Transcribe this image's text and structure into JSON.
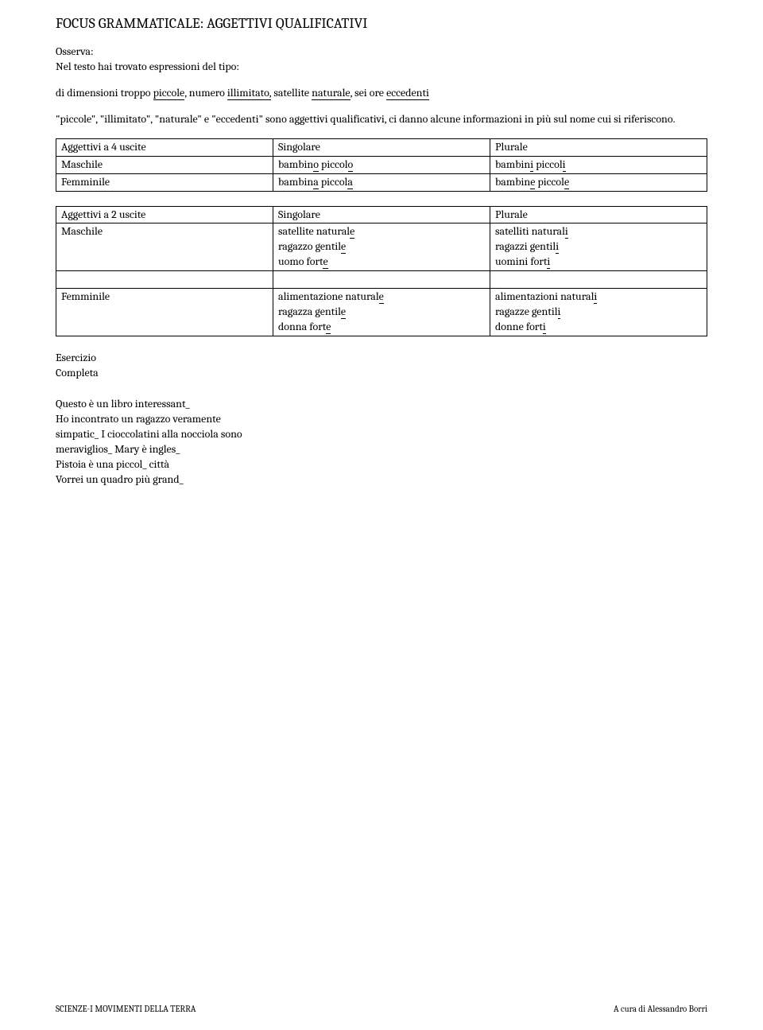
{
  "title": "FOCUS GRAMMATICALE: AGGETTIVI QUALIFICATIVI",
  "osserva_label": "Osserva:",
  "osserva_text": "Nel testo hai trovato espressioni del tipo:",
  "example_prefix": "di dimensioni troppo ",
  "ex_piccole": "piccole",
  "ex_sep1": ", numero ",
  "ex_illimitato": "illimitato,",
  "ex_sep2": " satellite ",
  "ex_naturale": "naturale",
  "ex_sep3": ", sei ore ",
  "ex_eccedenti": "eccedenti",
  "explain": "\"piccole\", \"illimitato\", \"naturale\" e \"eccedenti\" sono aggettivi qualificativi, ci danno alcune informazioni in più sul nome cui si riferiscono.",
  "t1": {
    "h1": "Aggettivi a 4 uscite",
    "h2": "Singolare",
    "h3": "Plurale",
    "r1c1": "Maschile",
    "r1c2_a": "bambin",
    "r1c2_b": "o",
    "r1c2_c": " piccol",
    "r1c2_d": "o",
    "r1c3_a": "bambin",
    "r1c3_b": "i",
    "r1c3_c": " piccol",
    "r1c3_d": "i",
    "r2c1": "Femminile",
    "r2c2_a": "bambin",
    "r2c2_b": "a",
    "r2c2_c": " piccol",
    "r2c2_d": "a",
    "r2c3_a": "bambin",
    "r2c3_b": "e",
    "r2c3_c": " piccol",
    "r2c3_d": "e"
  },
  "t2": {
    "h1": "Aggettivi a 2 uscite",
    "h2": "Singolare",
    "h3": "Plurale",
    "r1c1": "Maschile",
    "r1c2_l1a": "satellite natural",
    "r1c2_l1b": "e",
    "r1c2_l2a": "ragazzo gentil",
    "r1c2_l2b": "e",
    "r1c2_l3a": "uomo fort",
    "r1c2_l3b": "e",
    "r1c3_l1a": "satelliti natural",
    "r1c3_l1b": "i",
    "r1c3_l2a": "ragazzi gentil",
    "r1c3_l2b": "i",
    "r1c3_l3a": "uomini fort",
    "r1c3_l3b": "i",
    "r2c1": "Femminile",
    "r2c2_l1a": "alimentazione natural",
    "r2c2_l1b": "e",
    "r2c2_l2a": "ragazza gentil",
    "r2c2_l2b": "e",
    "r2c2_l3a": "donna fort",
    "r2c2_l3b": "e",
    "r2c3_l1a": "alimentazioni natural",
    "r2c3_l1b": "i",
    "r2c3_l2a": "ragazze gentil",
    "r2c3_l2b": "i",
    "r2c3_l3a": "donne fort",
    "r2c3_l3b": "i"
  },
  "esercizio_label": "Esercizio",
  "completa_label": "Completa",
  "ex_lines": {
    "l1": "Questo è un libro interessant_",
    "l2": "Ho incontrato un ragazzo veramente",
    "l3": "simpatic_ I cioccolatini alla nocciola sono",
    "l4": "meraviglios_ Mary è ingles_",
    "l5": "Pistoia è una piccol_ città",
    "l6": "Vorrei un quadro più grand_"
  },
  "footer_left": "SCIENZE-I MOVIMENTI DELLA TERRA",
  "footer_right": "A cura di Alessandro Borri"
}
